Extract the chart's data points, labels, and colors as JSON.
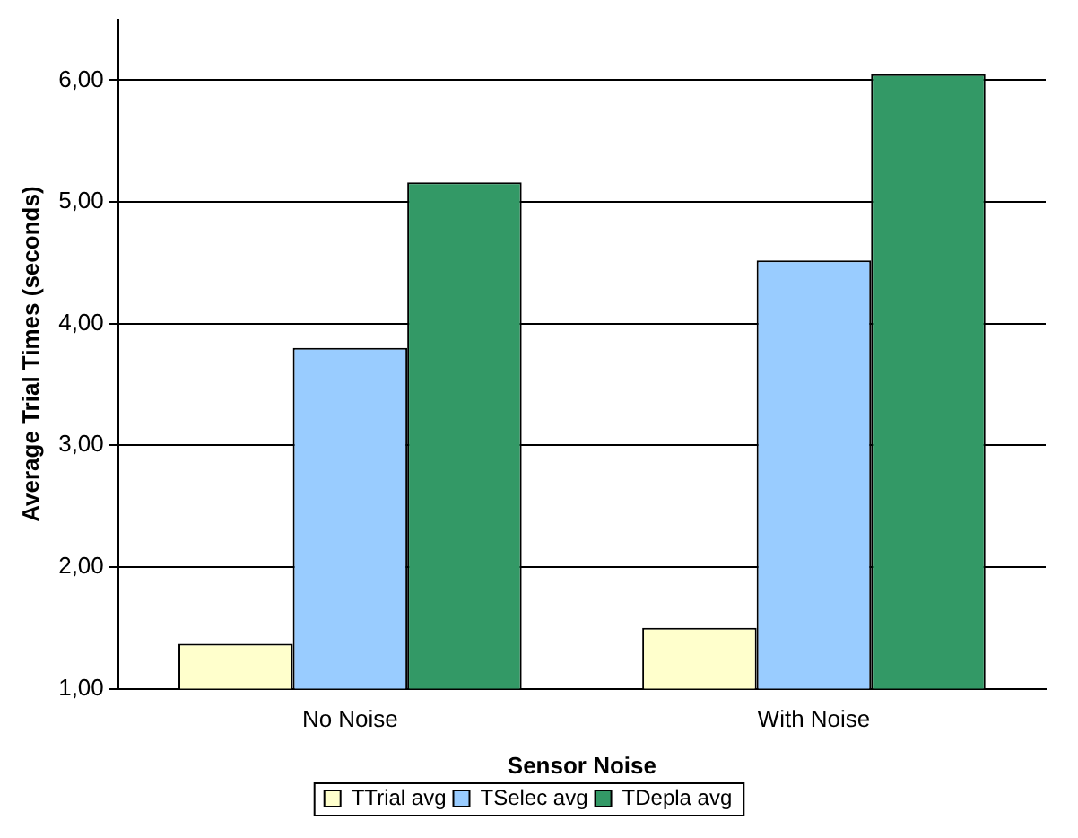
{
  "chart_data": {
    "type": "bar",
    "xlabel": "Sensor Noise",
    "ylabel": "Average Trial Times (seconds)",
    "categories": [
      "No Noise",
      "With Noise"
    ],
    "series": [
      {
        "name": "TTrial avg",
        "color": "#ffffcc",
        "values": [
          1.37,
          1.5
        ]
      },
      {
        "name": "TSelec avg",
        "color": "#99ccff",
        "values": [
          3.8,
          4.52
        ]
      },
      {
        "name": "TDepla avg",
        "color": "#339966",
        "values": [
          5.16,
          6.05
        ]
      }
    ],
    "ylim": [
      1,
      6.5
    ],
    "yticks": [
      {
        "value": 1,
        "label": "1,00"
      },
      {
        "value": 2,
        "label": "2,00"
      },
      {
        "value": 3,
        "label": "3,00"
      },
      {
        "value": 4,
        "label": "4,00"
      },
      {
        "value": 5,
        "label": "5,00"
      },
      {
        "value": 6,
        "label": "6,00"
      }
    ],
    "grid": "y",
    "legend": "bottom"
  }
}
